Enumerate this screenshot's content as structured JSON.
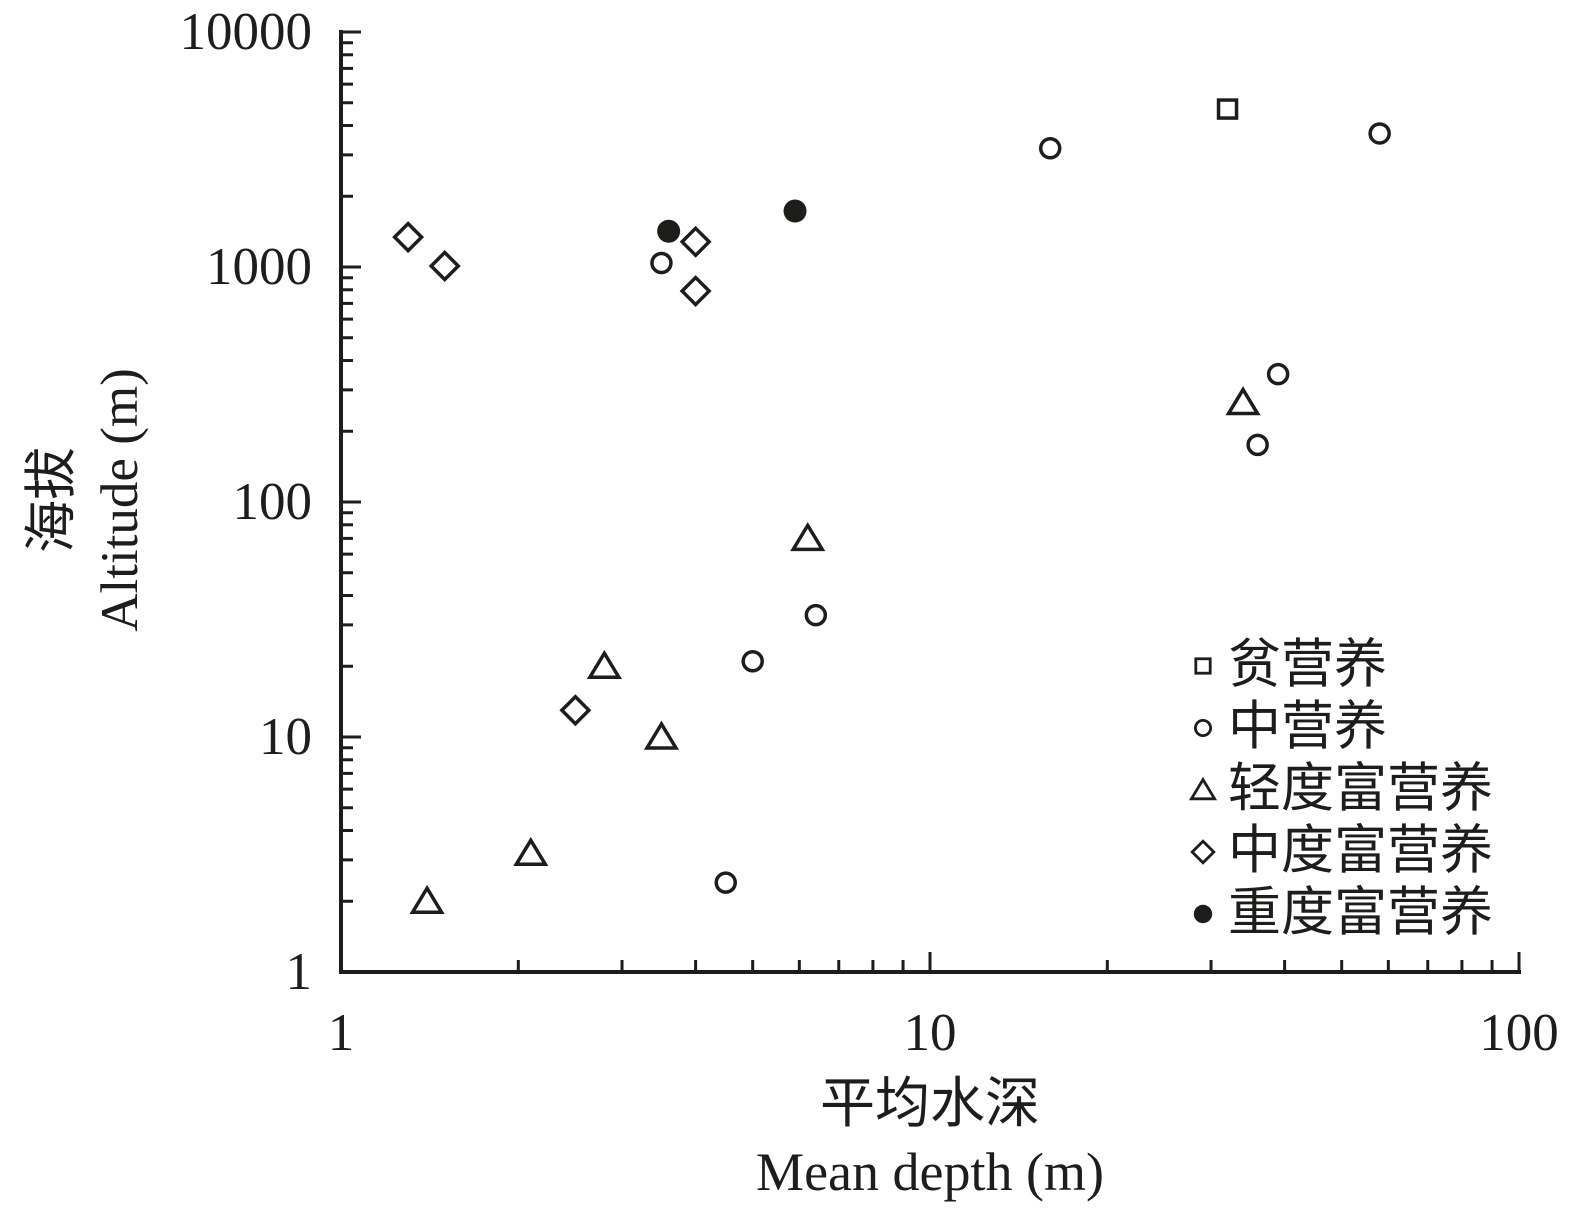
{
  "figure": {
    "background": "#ffffff",
    "ink_color": "#1d1d1b"
  },
  "chart_data": {
    "type": "scatter",
    "x_axis": {
      "title_zh": "平均水深",
      "title_en": "Mean depth (m)",
      "scale": "log",
      "range": [
        1,
        100
      ],
      "tick_values": [
        1,
        10,
        100
      ],
      "tick_labels": [
        "1",
        "10",
        "100"
      ],
      "minor_ticks": "log decades 2-9"
    },
    "y_axis": {
      "title_zh": "海拔",
      "title_en": "Altitude (m)",
      "scale": "log",
      "range": [
        1,
        10000
      ],
      "tick_values": [
        1,
        10,
        100,
        1000,
        10000
      ],
      "tick_labels": [
        "1",
        "10",
        "100",
        "1000",
        "10000"
      ],
      "minor_ticks": "log decades 2-9"
    },
    "grid": false,
    "legend_position": "inside-bottom-right",
    "series": [
      {
        "name": "贫营养",
        "marker": "open-square",
        "points": [
          [
            32,
            4700
          ]
        ]
      },
      {
        "name": "中营养",
        "marker": "open-circle",
        "points": [
          [
            16,
            3200
          ],
          [
            58,
            3700
          ],
          [
            3.5,
            1040
          ],
          [
            39,
            350
          ],
          [
            36,
            175
          ],
          [
            6.4,
            33
          ],
          [
            5,
            21
          ],
          [
            4.5,
            2.4
          ]
        ]
      },
      {
        "name": "轻度富营养",
        "marker": "open-triangle",
        "points": [
          [
            34,
            265
          ],
          [
            6.2,
            70
          ],
          [
            2.8,
            20
          ],
          [
            3.5,
            10
          ],
          [
            2.1,
            3.2
          ],
          [
            1.4,
            2
          ]
        ]
      },
      {
        "name": "中度富营养",
        "marker": "open-diamond",
        "points": [
          [
            1.3,
            1340
          ],
          [
            1.5,
            1010
          ],
          [
            4,
            1280
          ],
          [
            4,
            790
          ],
          [
            2.5,
            13
          ]
        ]
      },
      {
        "name": "重度富营养",
        "marker": "filled-circle",
        "points": [
          [
            3.6,
            1420
          ],
          [
            5.9,
            1730
          ]
        ]
      }
    ]
  }
}
